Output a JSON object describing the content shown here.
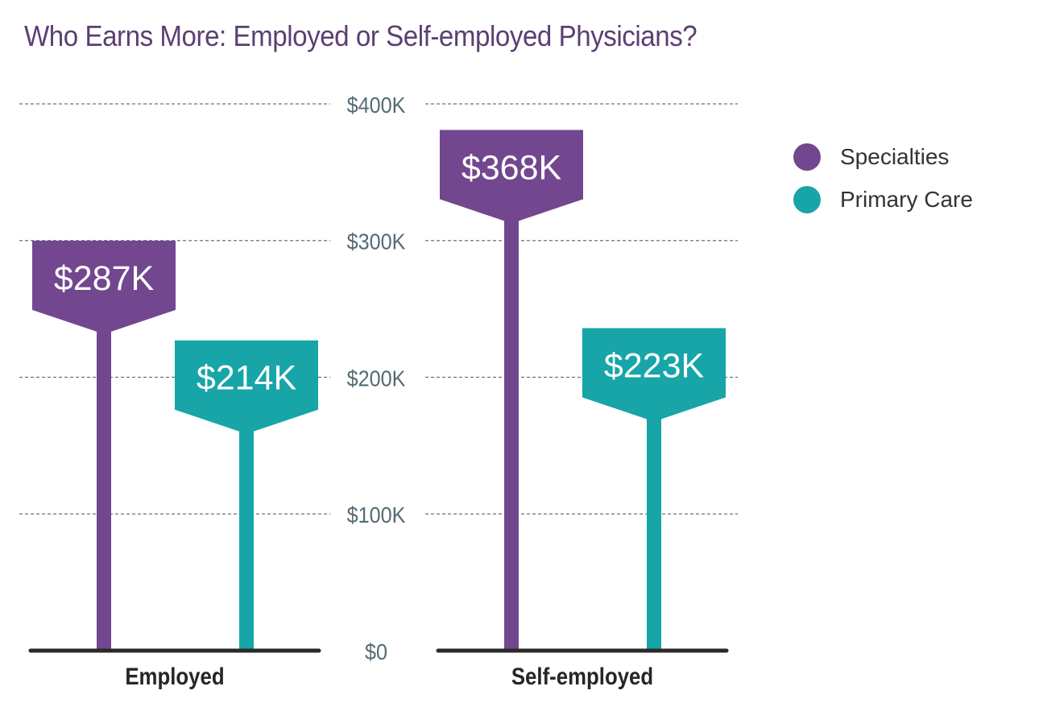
{
  "chart_data": {
    "type": "bar",
    "title": "Who Earns More: Employed or Self-employed Physicians?",
    "categories": [
      "Employed",
      "Self-employed"
    ],
    "series": [
      {
        "name": "Specialties",
        "values": [
          287,
          368
        ],
        "labels": [
          "$287K",
          "$368K"
        ]
      },
      {
        "name": "Primary Care",
        "values": [
          214,
          223
        ],
        "labels": [
          "$214K",
          "$223K"
        ]
      }
    ],
    "ylim": [
      0,
      400
    ],
    "yticks": [
      0,
      100,
      200,
      300,
      400
    ],
    "ytick_labels": [
      "$0",
      "$100K",
      "$200K",
      "$300K",
      "$400K"
    ],
    "xlabel": "",
    "ylabel": "",
    "grid": true,
    "legend_position": "top-right"
  },
  "colors": {
    "title": "#5b3f73",
    "specialties": "#72478f",
    "primary_care": "#17a5a8",
    "axis_tick": "#556b73",
    "gridline": "#5f7780",
    "baseline": "#2a2a2a",
    "category_label": "#262626",
    "value_label": "#ffffff"
  }
}
